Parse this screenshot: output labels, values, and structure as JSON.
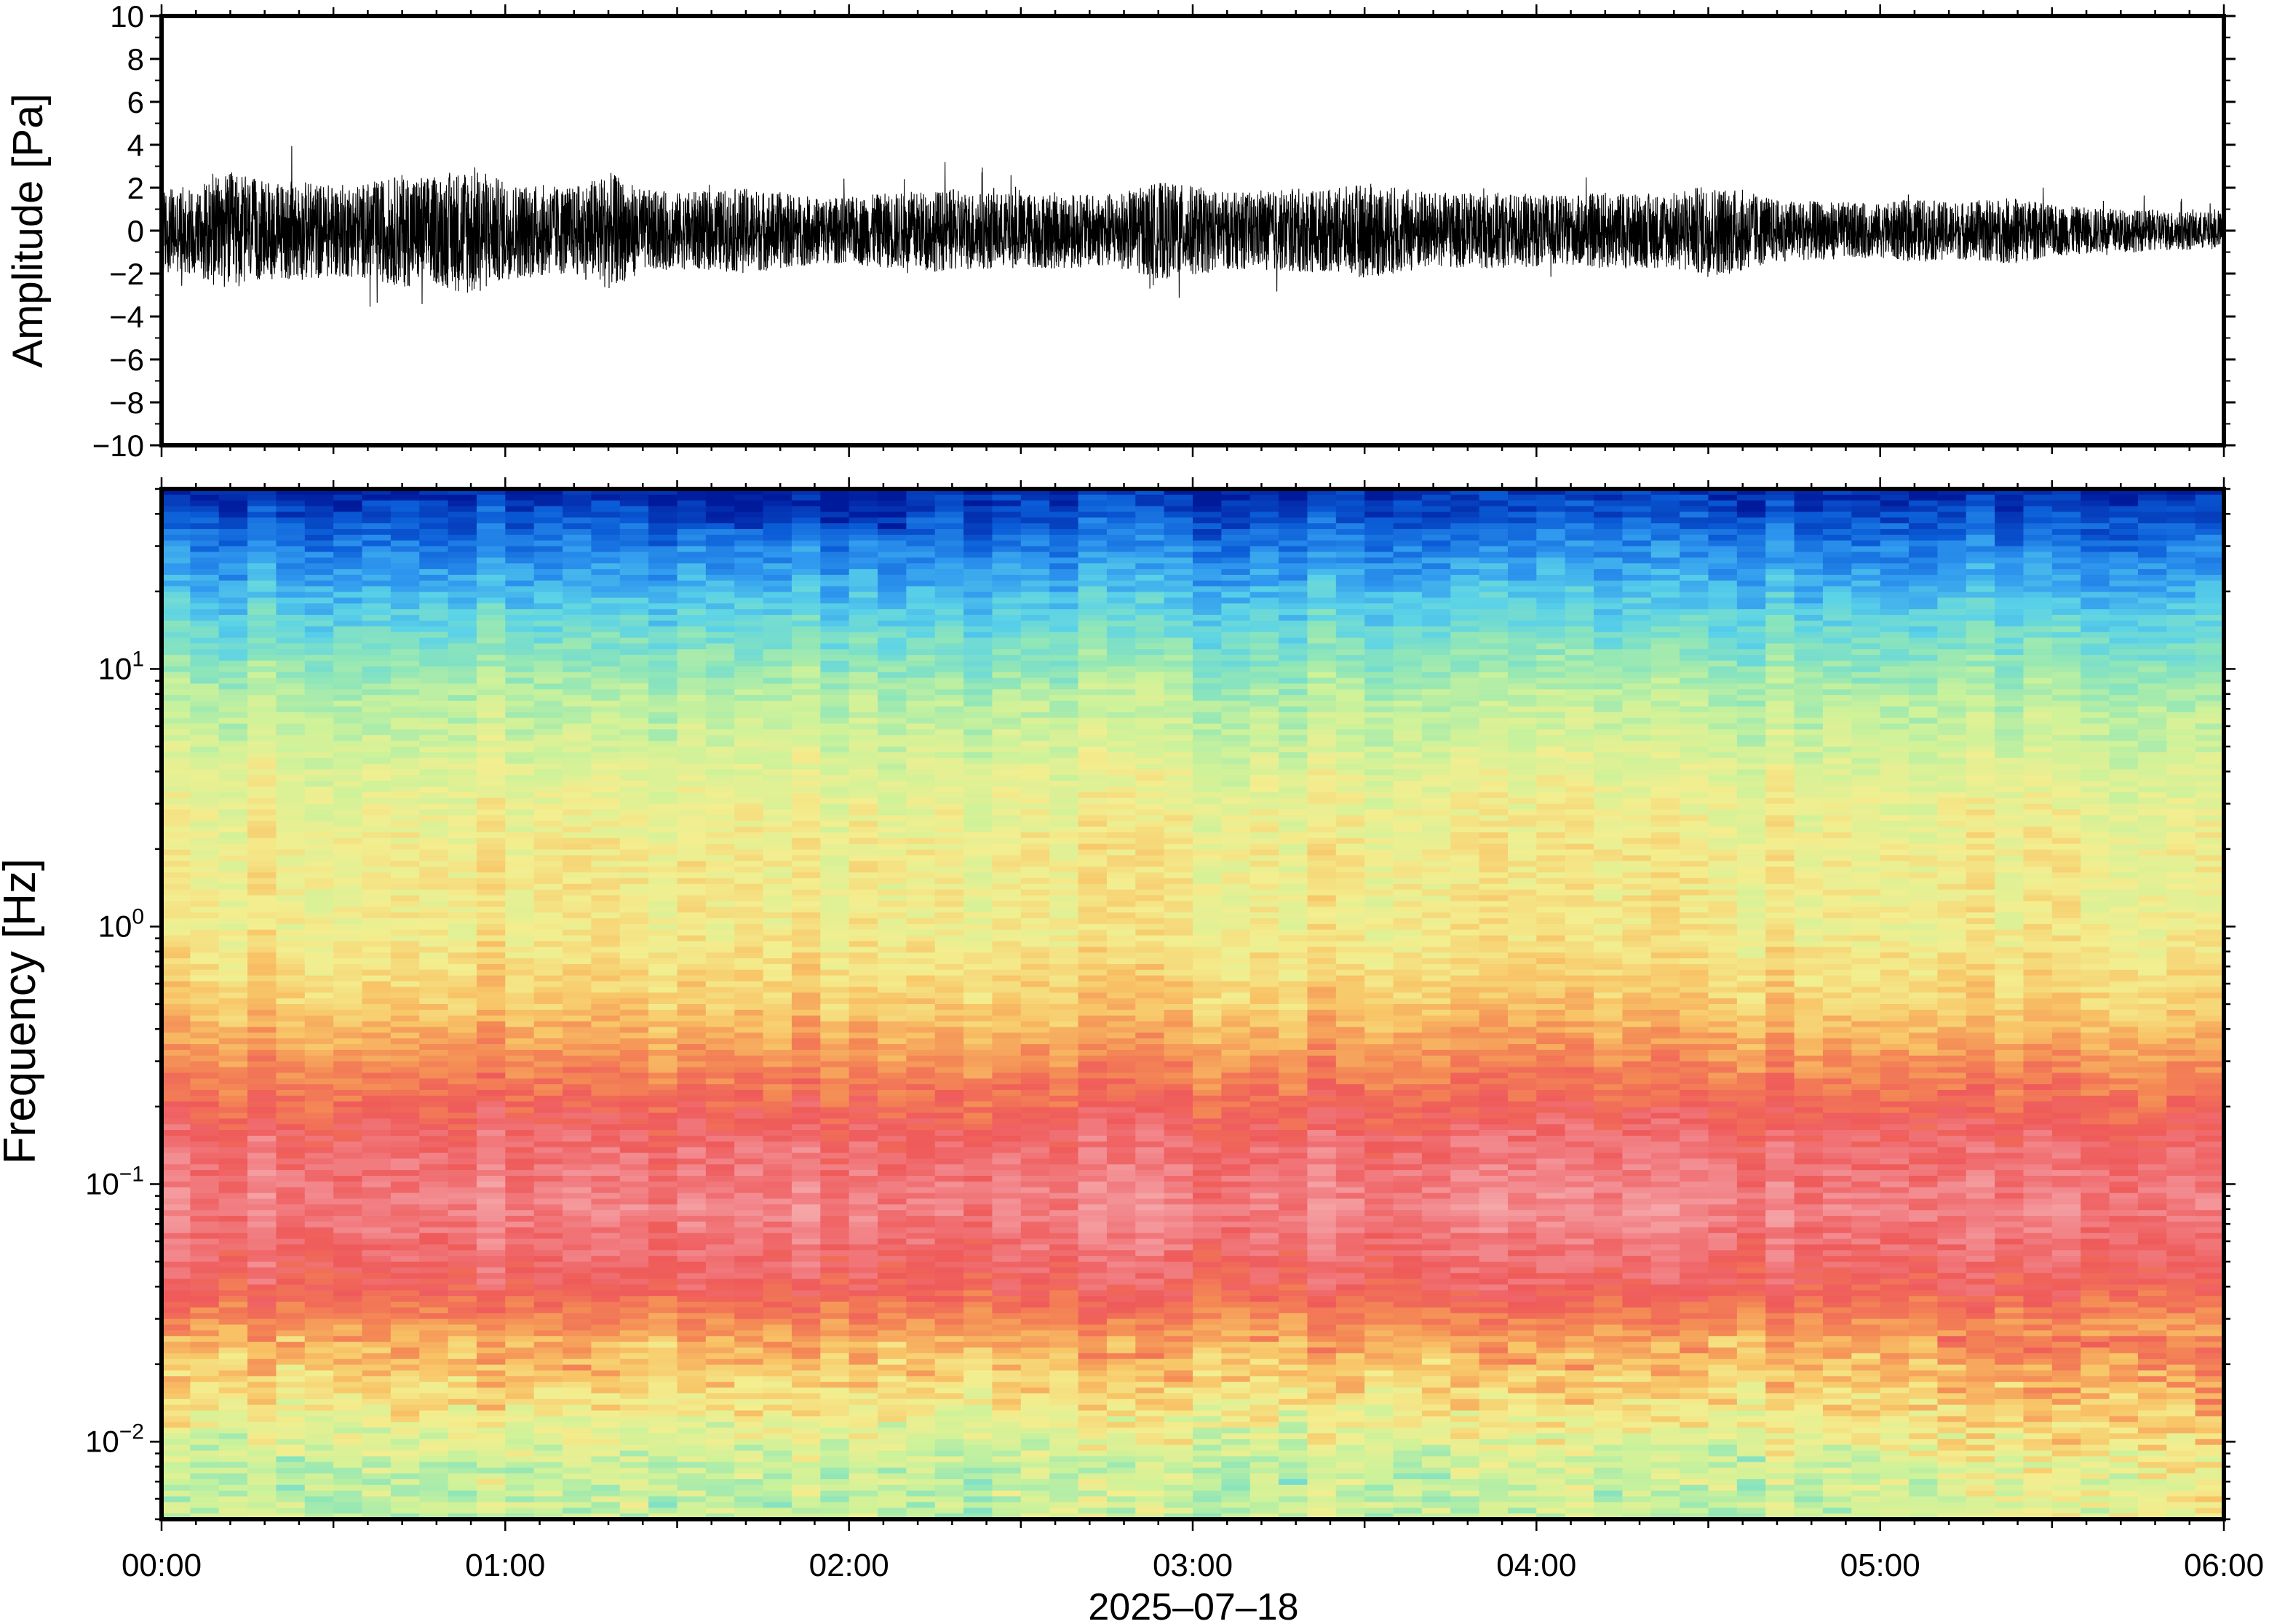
{
  "chart_data": [
    {
      "type": "line",
      "panel": "waveform",
      "ylabel": "Amplitude [Pa]",
      "ylim": [
        -10,
        10
      ],
      "yticks": [
        "10",
        "8",
        "6",
        "4",
        "2",
        "0",
        "−2",
        "−4",
        "−6",
        "−8",
        "−10"
      ],
      "ytick_values": [
        10,
        8,
        6,
        4,
        2,
        0,
        -2,
        -4,
        -6,
        -8,
        -10
      ],
      "xlim": [
        "00:00",
        "06:00"
      ],
      "series": [
        {
          "values_description_free": true,
          "envelope_hours": [
            0.0,
            0.1,
            0.2,
            0.3,
            0.4,
            0.5,
            0.6,
            0.7,
            0.8,
            0.9,
            1.0,
            1.1,
            1.2,
            1.3,
            1.4,
            1.5,
            1.6,
            1.7,
            1.8,
            1.9,
            2.0,
            2.1,
            2.2,
            2.3,
            2.4,
            2.5,
            2.6,
            2.7,
            2.8,
            2.9,
            3.0,
            3.1,
            3.2,
            3.3,
            3.4,
            3.5,
            3.6,
            3.7,
            3.8,
            3.9,
            4.0,
            4.1,
            4.2,
            4.3,
            4.4,
            4.5,
            4.6,
            4.7,
            4.8,
            4.9,
            5.0,
            5.1,
            5.2,
            5.3,
            5.4,
            5.5,
            5.6,
            5.7,
            5.8,
            5.9,
            6.0
          ],
          "envelope_amplitude_pa": [
            3.2,
            3.5,
            4.6,
            3.8,
            3.9,
            3.6,
            3.7,
            4.4,
            4.2,
            5.2,
            3.8,
            3.6,
            3.4,
            4.6,
            3.2,
            3.0,
            3.1,
            3.3,
            3.0,
            2.6,
            2.6,
            2.9,
            3.1,
            3.2,
            3.0,
            2.9,
            3.0,
            2.8,
            3.0,
            3.8,
            3.5,
            3.0,
            3.0,
            3.3,
            3.2,
            3.7,
            3.4,
            3.0,
            2.9,
            3.0,
            2.8,
            2.7,
            3.0,
            2.9,
            3.0,
            3.6,
            3.2,
            2.4,
            2.3,
            2.2,
            2.1,
            2.5,
            2.2,
            2.4,
            2.6,
            2.0,
            1.8,
            1.7,
            1.6,
            1.5,
            1.4
          ]
        }
      ]
    },
    {
      "type": "heatmap",
      "panel": "spectrogram",
      "ylabel": "Frequency [Hz]",
      "yscale": "log",
      "ylim": [
        0.005,
        50
      ],
      "yticks": [
        {
          "base": "10",
          "exp": "−2",
          "value": 0.01
        },
        {
          "base": "10",
          "exp": "−1",
          "value": 0.1
        },
        {
          "base": "10",
          "exp": "0",
          "value": 1
        },
        {
          "base": "10",
          "exp": "1",
          "value": 10
        }
      ],
      "xlabel": "2025‒07‒18",
      "xticks": [
        "00:00",
        "01:00",
        "02:00",
        "03:00",
        "04:00",
        "05:00",
        "06:00"
      ],
      "xtick_hours": [
        0,
        1,
        2,
        3,
        4,
        5,
        6
      ],
      "colormap": [
        "#001a9c",
        "#0a5bd6",
        "#2f98ef",
        "#5ad2e8",
        "#8fe6b8",
        "#cdf29a",
        "#f3ee8f",
        "#f8c466",
        "#f48a55",
        "#ef5a5a",
        "#f28a8f",
        "#f8b7b7"
      ],
      "power_description": "relative power 0-1 per band, higher near 0.1 Hz, lower toward 50 Hz",
      "band_profile_frequency_hz": [
        50,
        30,
        15,
        8,
        4,
        2,
        1,
        0.5,
        0.3,
        0.15,
        0.08,
        0.04,
        0.025,
        0.015,
        0.008
      ],
      "band_profile_level": [
        0.02,
        0.15,
        0.3,
        0.42,
        0.5,
        0.55,
        0.55,
        0.62,
        0.72,
        0.85,
        0.9,
        0.82,
        0.68,
        0.58,
        0.45
      ]
    }
  ]
}
